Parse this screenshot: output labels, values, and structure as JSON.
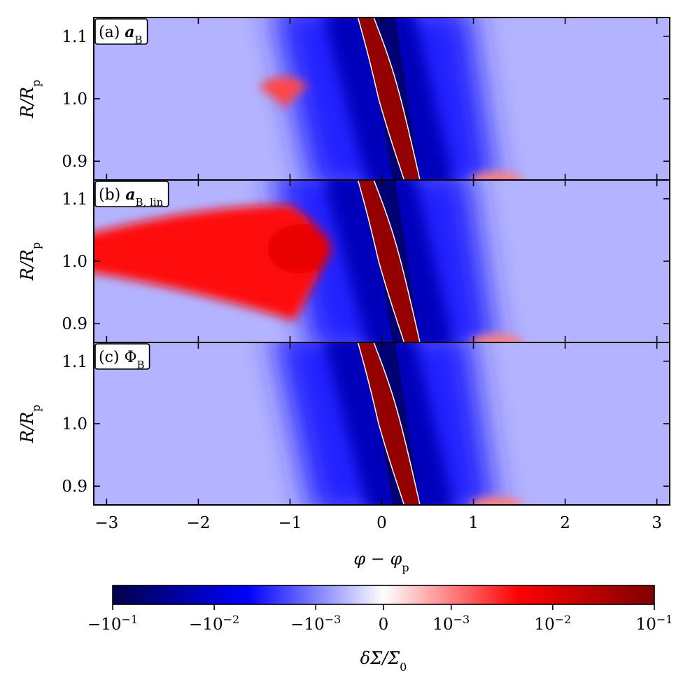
{
  "chart_data": [
    {
      "type": "heatmap",
      "panel_label": "(a) aB",
      "panel_prefix": "(a)",
      "panel_symbol": "a",
      "panel_sub": "B",
      "xlabel": "φ − φp",
      "ylabel": "R/Rp",
      "xlim": [
        -3.14,
        3.14
      ],
      "ylim": [
        0.87,
        1.13
      ],
      "xticks": [
        "−3",
        "−2",
        "−1",
        "0",
        "1",
        "2",
        "3"
      ],
      "yticks": [
        "0.9",
        "1.0",
        "1.1"
      ],
      "features": [
        {
          "kind": "wake",
          "sign": "positive",
          "x_at_top": -0.2,
          "x_at_bottom": 0.3
        },
        {
          "kind": "trough",
          "sign": "negative",
          "x_center": 0.0
        },
        {
          "kind": "lobe",
          "sign": "positive",
          "x": -1.0,
          "y": 1.02,
          "amplitude": 0.002
        },
        {
          "kind": "lobe",
          "sign": "positive",
          "x": 1.25,
          "y": 0.875,
          "amplitude": 0.001
        }
      ]
    },
    {
      "type": "heatmap",
      "panel_label": "(b) aB,lin",
      "panel_prefix": "(b)",
      "panel_symbol": "a",
      "panel_sub": "B, lin",
      "xlabel": "φ − φp",
      "ylabel": "R/Rp",
      "xlim": [
        -3.14,
        3.14
      ],
      "ylim": [
        0.87,
        1.13
      ],
      "xticks": [
        "−3",
        "−2",
        "−1",
        "0",
        "1",
        "2",
        "3"
      ],
      "yticks": [
        "0.9",
        "1.0",
        "1.1"
      ],
      "features": [
        {
          "kind": "wake",
          "sign": "positive",
          "x_at_top": -0.2,
          "x_at_bottom": 0.3
        },
        {
          "kind": "trough",
          "sign": "negative",
          "x_center": 0.0
        },
        {
          "kind": "lobe",
          "sign": "positive",
          "x": -1.0,
          "y": 1.02,
          "amplitude": 0.004
        },
        {
          "kind": "lobe",
          "sign": "positive",
          "x": 1.25,
          "y": 0.875,
          "amplitude": 0.001
        }
      ]
    },
    {
      "type": "heatmap",
      "panel_label": "(c) ΦB",
      "panel_prefix": "(c)",
      "panel_symbol": "Φ",
      "panel_sub": "B",
      "xlabel": "φ − φp",
      "ylabel": "R/Rp",
      "xlim": [
        -3.14,
        3.14
      ],
      "ylim": [
        0.87,
        1.13
      ],
      "xticks": [
        "−3",
        "−2",
        "−1",
        "0",
        "1",
        "2",
        "3"
      ],
      "yticks": [
        "0.9",
        "1.0",
        "1.1"
      ],
      "features": [
        {
          "kind": "wake",
          "sign": "positive",
          "x_at_top": -0.2,
          "x_at_bottom": 0.3
        },
        {
          "kind": "trough",
          "sign": "negative",
          "x_center": 0.0
        },
        {
          "kind": "lobe",
          "sign": "positive",
          "x": 1.25,
          "y": 0.875,
          "amplitude": 0.001
        }
      ]
    }
  ],
  "colorbar": {
    "label": "δΣ/Σ0",
    "scale": "symlog",
    "range": [
      -0.1,
      0.1
    ],
    "linthresh": 0.001,
    "ticks": [
      {
        "value": -0.1,
        "base": "−10",
        "exp": "−1"
      },
      {
        "value": -0.01,
        "base": "−10",
        "exp": "−2"
      },
      {
        "value": -0.001,
        "base": "−10",
        "exp": "−3"
      },
      {
        "value": 0,
        "base": "0",
        "exp": ""
      },
      {
        "value": 0.001,
        "base": "10",
        "exp": "−3"
      },
      {
        "value": 0.01,
        "base": "10",
        "exp": "−2"
      },
      {
        "value": 0.1,
        "base": "10",
        "exp": "−1"
      }
    ],
    "colormap": "seismic",
    "colors": {
      "neg_max": "#00004c",
      "neg_mid": "#0000ff",
      "zero": "#ffffff",
      "pos_mid": "#ff0000",
      "pos_max": "#7f0000"
    }
  }
}
